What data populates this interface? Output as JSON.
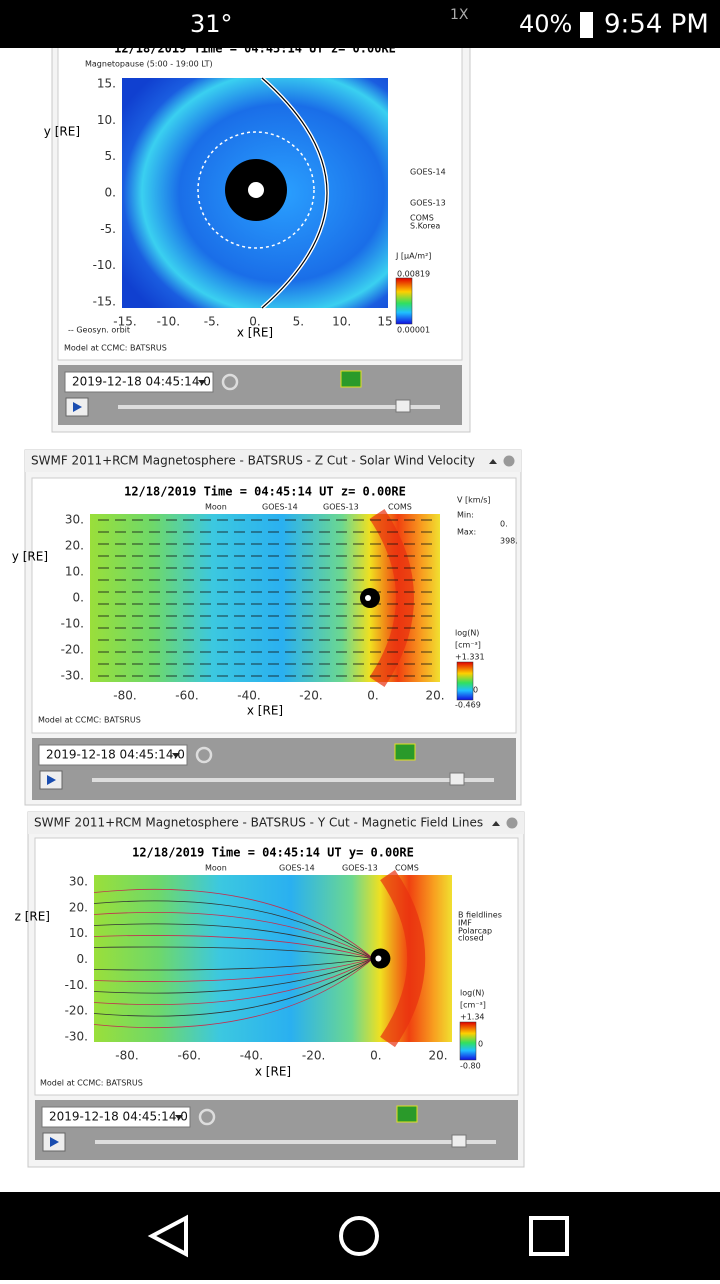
{
  "status_bar": {
    "temperature": "31°",
    "speed": "1X",
    "battery": "40%",
    "time": "9:54 PM"
  },
  "panels": [
    {
      "plot": {
        "title": "12/18/2019 Time = 04:45:14 UT z= 0.00RE",
        "legend": [
          "Magnetopause (5:00 - 19:00 LT)",
          "-- Geosyn. orbit"
        ],
        "y_label": "y [RE]",
        "x_label": "x [RE]",
        "y_ticks": [
          "15.",
          "10.",
          "5.",
          "0.",
          "-5.",
          "-10.",
          "-15."
        ],
        "x_ticks": [
          "-15.",
          "-10.",
          "-5.",
          "0.",
          "5.",
          "10.",
          "15"
        ],
        "side_labels": [
          "GOES-14",
          "GOES-13",
          "COMS",
          "S.Korea",
          "J [µA/m²]",
          "0.00819",
          "0.00001"
        ],
        "footer": "Model at CCMC: BATSRUS"
      },
      "controls": {
        "datetime": "2019-12-18 04:45:14.0"
      }
    },
    {
      "header": "SWMF 2011+RCM Magnetosphere - BATSRUS - Z Cut - Solar Wind Velocity",
      "plot": {
        "title": "12/18/2019 Time = 04:45:14 UT z= 0.00RE",
        "legend": [
          "Moon",
          "GOES-14",
          "GOES-13",
          "COMS"
        ],
        "y_label": "y [RE]",
        "x_label": "x [RE]",
        "y_ticks": [
          "30.",
          "20.",
          "10.",
          "0.",
          "-10.",
          "-20.",
          "-30."
        ],
        "x_ticks": [
          "-80.",
          "-60.",
          "-40.",
          "-20.",
          "0.",
          "20."
        ],
        "side_labels": [
          "V [km/s]",
          "Min:",
          "0.",
          "Max:",
          "398.",
          "log(N)",
          "[cm⁻³]",
          "+1.331",
          "0",
          "-0.469"
        ],
        "footer": "Model at CCMC: BATSRUS"
      },
      "controls": {
        "datetime": "2019-12-18 04:45:14.0"
      }
    },
    {
      "header": "SWMF 2011+RCM Magnetosphere - BATSRUS - Y Cut - Magnetic Field Lines",
      "plot": {
        "title": "12/18/2019 Time = 04:45:14 UT y= 0.00RE",
        "legend": [
          "Moon",
          "GOES-14",
          "GOES-13",
          "COMS"
        ],
        "y_label": "z [RE]",
        "x_label": "x [RE]",
        "y_ticks": [
          "30.",
          "20.",
          "10.",
          "0.",
          "-10.",
          "-20.",
          "-30."
        ],
        "x_ticks": [
          "-80.",
          "-60.",
          "-40.",
          "-20.",
          "0.",
          "20."
        ],
        "side_labels": [
          "B fieldlines",
          "IMF",
          "Polarcap",
          "closed",
          "log(N)",
          "[cm⁻³]",
          "+1.34",
          "0",
          "-0.80"
        ],
        "footer": "Model at CCMC: BATSRUS"
      },
      "controls": {
        "datetime": "2019-12-18 04:45:14.0"
      }
    }
  ]
}
